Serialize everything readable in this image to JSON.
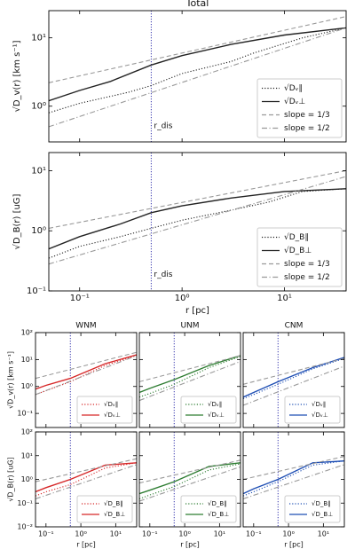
{
  "chart_data": [
    {
      "type": "line",
      "title": "Total",
      "ylabel": "√D_v(r) [km s⁻¹]",
      "xlim": [
        0.05,
        40
      ],
      "ylim": [
        0.3,
        25
      ],
      "xticks": [
        {
          "value": 0.1,
          "label": "10⁻¹"
        },
        {
          "value": 1,
          "label": "10⁰"
        },
        {
          "value": 10,
          "label": "10¹"
        }
      ],
      "yticks": [
        {
          "value": 1,
          "label": "10⁰"
        },
        {
          "value": 10,
          "label": "10¹"
        }
      ],
      "log_x": true,
      "log_y": true,
      "vline": 0.5,
      "vline_label": "r_dis",
      "legend": "lower right",
      "series": [
        {
          "name": "√Dᵥ∥",
          "color": "#222222",
          "style": "dotted",
          "x": [
            0.05,
            0.1,
            0.3,
            0.5,
            1,
            3,
            5,
            15,
            40
          ],
          "values": [
            0.8,
            1.1,
            1.6,
            2,
            3,
            4.5,
            6,
            10,
            14
          ]
        },
        {
          "name": "√Dᵥ⊥",
          "color": "#222222",
          "style": "solid",
          "x": [
            0.05,
            0.1,
            0.2,
            0.5,
            1,
            3,
            10,
            40
          ],
          "values": [
            1.2,
            1.7,
            2.3,
            4,
            5.5,
            8,
            11,
            14
          ]
        },
        {
          "name": "slope = 1/3",
          "color": "#999999",
          "style": "dashed",
          "x": [
            0.05,
            40
          ],
          "values": [
            2.2,
            20.5
          ]
        },
        {
          "name": "slope = 1/2",
          "color": "#999999",
          "style": "dashdot",
          "x": [
            0.05,
            40
          ],
          "values": [
            0.5,
            14
          ]
        }
      ]
    },
    {
      "type": "line",
      "ylabel": "√D_B(r) [uG]",
      "xlabel": "r [pc]",
      "xlim": [
        0.05,
        40
      ],
      "ylim": [
        0.1,
        20
      ],
      "xticks": [
        {
          "value": 0.1,
          "label": "10⁻¹"
        },
        {
          "value": 1,
          "label": "10⁰"
        },
        {
          "value": 10,
          "label": "10¹"
        }
      ],
      "yticks": [
        {
          "value": 0.1,
          "label": "10⁻¹"
        },
        {
          "value": 1,
          "label": "10⁰"
        },
        {
          "value": 10,
          "label": "10¹"
        }
      ],
      "log_x": true,
      "log_y": true,
      "vline": 0.5,
      "vline_label": "r_dis",
      "legend": "lower right",
      "series": [
        {
          "name": "√D_B∥",
          "color": "#222222",
          "style": "dotted",
          "x": [
            0.05,
            0.1,
            0.25,
            0.5,
            1,
            3,
            7,
            15,
            40
          ],
          "values": [
            0.35,
            0.55,
            0.8,
            1.1,
            1.5,
            2.2,
            3,
            4.5,
            5
          ]
        },
        {
          "name": "√D_B⊥",
          "color": "#222222",
          "style": "solid",
          "x": [
            0.05,
            0.1,
            0.25,
            0.5,
            1,
            3,
            10,
            40
          ],
          "values": [
            0.5,
            0.8,
            1.3,
            2,
            2.6,
            3.5,
            4.5,
            5
          ]
        },
        {
          "name": "slope = 1/3",
          "color": "#999999",
          "style": "dashed",
          "x": [
            0.05,
            40
          ],
          "values": [
            1.1,
            10
          ]
        },
        {
          "name": "slope = 1/2",
          "color": "#999999",
          "style": "dashdot",
          "x": [
            0.05,
            40
          ],
          "values": [
            0.28,
            8
          ]
        }
      ]
    },
    {
      "type": "line",
      "title": "WNM",
      "ylabel": "√D_v(r) [km s⁻¹]",
      "xlim": [
        0.05,
        40
      ],
      "ylim": [
        0.03,
        100
      ],
      "xticks": [
        0.1,
        1,
        10
      ],
      "yticks": [
        {
          "value": 0.1,
          "label": "10⁻¹"
        },
        {
          "value": 1,
          "label": "10⁰"
        },
        {
          "value": 10,
          "label": "10¹"
        },
        {
          "value": 100,
          "label": "10²"
        }
      ],
      "log_x": true,
      "log_y": true,
      "vline": 0.5,
      "legend": "lower right",
      "series": [
        {
          "name": "√Dᵥ∥",
          "color": "#d62728",
          "style": "dotted",
          "x": [
            0.05,
            0.1,
            0.5,
            5,
            40
          ],
          "values": [
            0.5,
            0.7,
            1.5,
            6,
            14
          ]
        },
        {
          "name": "√Dᵥ⊥",
          "color": "#d62728",
          "style": "solid",
          "x": [
            0.05,
            0.1,
            0.5,
            5,
            40
          ],
          "values": [
            0.8,
            1.1,
            2,
            7,
            15
          ]
        },
        {
          "color": "#999999",
          "style": "dashed",
          "x": [
            0.05,
            40
          ],
          "values": [
            2,
            18.6
          ]
        },
        {
          "color": "#999999",
          "style": "dashdot",
          "x": [
            0.05,
            40
          ],
          "values": [
            0.5,
            14
          ]
        }
      ]
    },
    {
      "type": "line",
      "title": "UNM",
      "xlim": [
        0.05,
        40
      ],
      "ylim": [
        0.03,
        100
      ],
      "xticks": [
        0.1,
        1,
        10
      ],
      "yticks": [
        0.1,
        1,
        10,
        100
      ],
      "log_x": true,
      "log_y": true,
      "vline": 0.5,
      "legend": "lower right",
      "series": [
        {
          "name": "√Dᵥ∥",
          "color": "#2e7d32",
          "style": "dotted",
          "x": [
            0.05,
            0.1,
            0.5,
            5,
            40
          ],
          "values": [
            0.4,
            0.55,
            1.2,
            5,
            13
          ]
        },
        {
          "name": "√Dᵥ⊥",
          "color": "#2e7d32",
          "style": "solid",
          "x": [
            0.05,
            0.1,
            0.5,
            5,
            40
          ],
          "values": [
            0.6,
            0.85,
            1.8,
            6,
            14
          ]
        },
        {
          "color": "#999999",
          "style": "dashed",
          "x": [
            0.05,
            40
          ],
          "values": [
            1.5,
            14
          ]
        },
        {
          "color": "#999999",
          "style": "dashdot",
          "x": [
            0.05,
            40
          ],
          "values": [
            0.3,
            8.5
          ]
        }
      ]
    },
    {
      "type": "line",
      "title": "CNM",
      "xlim": [
        0.05,
        40
      ],
      "ylim": [
        0.03,
        100
      ],
      "xticks": [
        0.1,
        1,
        10
      ],
      "yticks": [
        0.1,
        1,
        10,
        100
      ],
      "log_x": true,
      "log_y": true,
      "vline": 0.5,
      "legend": "lower right",
      "series": [
        {
          "name": "√Dᵥ∥",
          "color": "#1f4fb4",
          "style": "dotted",
          "x": [
            0.05,
            0.1,
            0.5,
            5,
            40
          ],
          "values": [
            0.35,
            0.5,
            1.2,
            4.5,
            11
          ]
        },
        {
          "name": "√Dᵥ⊥",
          "color": "#1f4fb4",
          "style": "solid",
          "x": [
            0.05,
            0.1,
            0.5,
            5,
            40
          ],
          "values": [
            0.4,
            0.6,
            1.5,
            5,
            12
          ]
        },
        {
          "color": "#999999",
          "style": "dashed",
          "x": [
            0.05,
            40
          ],
          "values": [
            1.2,
            11
          ]
        },
        {
          "color": "#999999",
          "style": "dashdot",
          "x": [
            0.05,
            40
          ],
          "values": [
            0.2,
            5.7
          ]
        }
      ]
    },
    {
      "type": "line",
      "ylabel": "√D_B(r) [uG]",
      "xlabel": "r [pc]",
      "xlim": [
        0.05,
        40
      ],
      "ylim": [
        0.01,
        100
      ],
      "xticks": [
        {
          "value": 0.1,
          "label": "10⁻¹"
        },
        {
          "value": 1,
          "label": "10⁰"
        },
        {
          "value": 10,
          "label": "10¹"
        }
      ],
      "yticks": [
        {
          "value": 0.01,
          "label": "10⁻²"
        },
        {
          "value": 0.1,
          "label": "10⁻¹"
        },
        {
          "value": 1,
          "label": "10⁰"
        },
        {
          "value": 10,
          "label": "10¹"
        },
        {
          "value": 100,
          "label": "10²"
        }
      ],
      "log_x": true,
      "log_y": true,
      "vline": 0.5,
      "legend": "lower right",
      "series": [
        {
          "name": "√D_B∥",
          "color": "#d62728",
          "style": "dotted",
          "x": [
            0.05,
            0.1,
            0.5,
            5,
            40
          ],
          "values": [
            0.2,
            0.3,
            0.6,
            3,
            5
          ]
        },
        {
          "name": "√D_B⊥",
          "color": "#d62728",
          "style": "solid",
          "x": [
            0.05,
            0.1,
            0.5,
            5,
            40
          ],
          "values": [
            0.3,
            0.45,
            1,
            4,
            5
          ]
        },
        {
          "color": "#999999",
          "style": "dashed",
          "x": [
            0.05,
            40
          ],
          "values": [
            0.8,
            7.4
          ]
        },
        {
          "color": "#999999",
          "style": "dashdot",
          "x": [
            0.05,
            40
          ],
          "values": [
            0.15,
            4.2
          ]
        }
      ]
    },
    {
      "type": "line",
      "xlabel": "r [pc]",
      "xlim": [
        0.05,
        40
      ],
      "ylim": [
        0.01,
        100
      ],
      "xticks": [
        {
          "value": 0.1,
          "label": "10⁻¹"
        },
        {
          "value": 1,
          "label": "10⁰"
        },
        {
          "value": 10,
          "label": "10¹"
        }
      ],
      "yticks": [
        0.01,
        0.1,
        1,
        10,
        100
      ],
      "log_x": true,
      "log_y": true,
      "vline": 0.5,
      "legend": "lower right",
      "series": [
        {
          "name": "√D_B∥",
          "color": "#2e7d32",
          "style": "dotted",
          "x": [
            0.05,
            0.1,
            0.5,
            5,
            40
          ],
          "values": [
            0.15,
            0.22,
            0.5,
            2.5,
            4.5
          ]
        },
        {
          "name": "√D_B⊥",
          "color": "#2e7d32",
          "style": "solid",
          "x": [
            0.05,
            0.1,
            0.5,
            5,
            40
          ],
          "values": [
            0.25,
            0.35,
            0.8,
            3.5,
            5
          ]
        },
        {
          "color": "#999999",
          "style": "dashed",
          "x": [
            0.05,
            40
          ],
          "values": [
            0.7,
            6.5
          ]
        },
        {
          "color": "#999999",
          "style": "dashdot",
          "x": [
            0.05,
            40
          ],
          "values": [
            0.12,
            3.4
          ]
        }
      ]
    },
    {
      "type": "line",
      "xlabel": "r [pc]",
      "xlim": [
        0.05,
        40
      ],
      "ylim": [
        0.01,
        100
      ],
      "xticks": [
        {
          "value": 0.1,
          "label": "10⁻¹"
        },
        {
          "value": 1,
          "label": "10⁰"
        },
        {
          "value": 10,
          "label": "10¹"
        }
      ],
      "yticks": [
        0.01,
        0.1,
        1,
        10,
        100
      ],
      "log_x": true,
      "log_y": true,
      "vline": 0.5,
      "legend": "lower right",
      "series": [
        {
          "name": "√D_B∥",
          "color": "#1f4fb4",
          "style": "dotted",
          "x": [
            0.05,
            0.1,
            0.5,
            5,
            40
          ],
          "values": [
            0.2,
            0.3,
            0.8,
            4,
            6
          ]
        },
        {
          "name": "√D_B⊥",
          "color": "#1f4fb4",
          "style": "solid",
          "x": [
            0.05,
            0.1,
            0.5,
            5,
            40
          ],
          "values": [
            0.25,
            0.4,
            1,
            5,
            6
          ]
        },
        {
          "color": "#999999",
          "style": "dashed",
          "x": [
            0.05,
            40
          ],
          "values": [
            1,
            9.3
          ]
        },
        {
          "color": "#999999",
          "style": "dashdot",
          "x": [
            0.05,
            40
          ],
          "values": [
            0.15,
            4.2
          ]
        }
      ]
    }
  ]
}
